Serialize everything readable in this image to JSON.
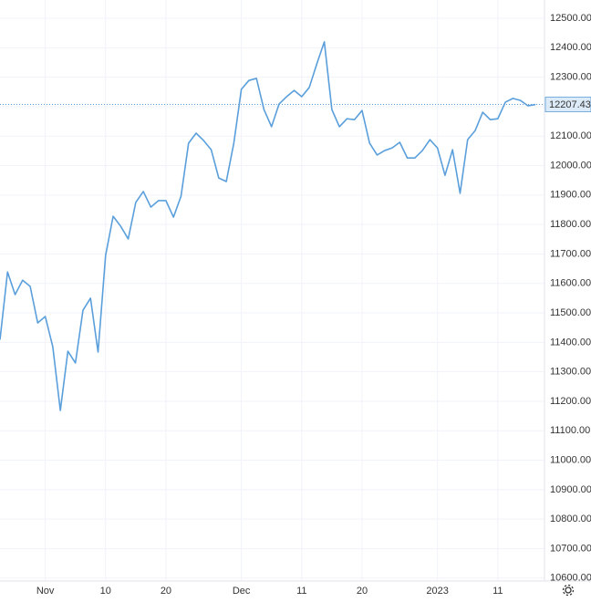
{
  "chart_data": {
    "type": "line",
    "categories": [
      null,
      null,
      null,
      null,
      null,
      null,
      "Nov",
      null,
      null,
      null,
      null,
      null,
      null,
      null,
      "10",
      null,
      null,
      null,
      null,
      null,
      null,
      null,
      "20",
      null,
      null,
      null,
      null,
      null,
      null,
      null,
      null,
      null,
      "Dec",
      null,
      null,
      null,
      null,
      null,
      null,
      null,
      "11",
      null,
      null,
      null,
      null,
      null,
      null,
      null,
      "20",
      null,
      null,
      null,
      null,
      null,
      null,
      null,
      null,
      null,
      "2023",
      null,
      null,
      null,
      null,
      null,
      null,
      null,
      "11",
      null,
      null,
      null,
      null,
      null
    ],
    "series": [
      {
        "color": "#5a9fdb",
        "values": [
          11409,
          11639,
          11562,
          11611,
          11590,
          11466,
          11488,
          11385,
          11169,
          11370,
          11330,
          11509,
          11550,
          11367,
          11695,
          11828,
          11794,
          11751,
          11875,
          11912,
          11859,
          11881,
          11881,
          11825,
          11896,
          12076,
          12110,
          12085,
          12054,
          11958,
          11946,
          12076,
          12259,
          12289,
          12296,
          12190,
          12132,
          12209,
          12234,
          12255,
          12234,
          12265,
          12345,
          12420,
          12190,
          12132,
          12159,
          12156,
          12187,
          12076,
          12036,
          12051,
          12060,
          12079,
          12026,
          12026,
          12051,
          12088,
          12060,
          11967,
          12054,
          11906,
          12088,
          12119,
          12181,
          12156,
          12159,
          12215,
          12228,
          12221,
          12203,
          12207.43
        ]
      }
    ],
    "ylim": [
      10590,
      12562
    ],
    "yticks": [
      {
        "value": 10600,
        "label": "10600.00"
      },
      {
        "value": 10700,
        "label": "10700.00"
      },
      {
        "value": 10800,
        "label": "10800.00"
      },
      {
        "value": 10900,
        "label": "10900.00"
      },
      {
        "value": 11000,
        "label": "11000.00"
      },
      {
        "value": 11100,
        "label": "11100.00"
      },
      {
        "value": 11200,
        "label": "11200.00"
      },
      {
        "value": 11300,
        "label": "11300.00"
      },
      {
        "value": 11400,
        "label": "11400.00"
      },
      {
        "value": 11500,
        "label": "11500.00"
      },
      {
        "value": 11600,
        "label": "11600.00"
      },
      {
        "value": 11700,
        "label": "11700.00"
      },
      {
        "value": 11800,
        "label": "11800.00"
      },
      {
        "value": 11900,
        "label": "11900.00"
      },
      {
        "value": 12000,
        "label": "12000.00"
      },
      {
        "value": 12100,
        "label": "12100.00"
      },
      {
        "value": 12200,
        "label": "12200.00"
      },
      {
        "value": 12300,
        "label": "12300.00"
      },
      {
        "value": 12400,
        "label": "12400.00"
      },
      {
        "value": 12500,
        "label": "12500.00"
      }
    ],
    "grid": true,
    "y_axis_side": "right"
  }
}
